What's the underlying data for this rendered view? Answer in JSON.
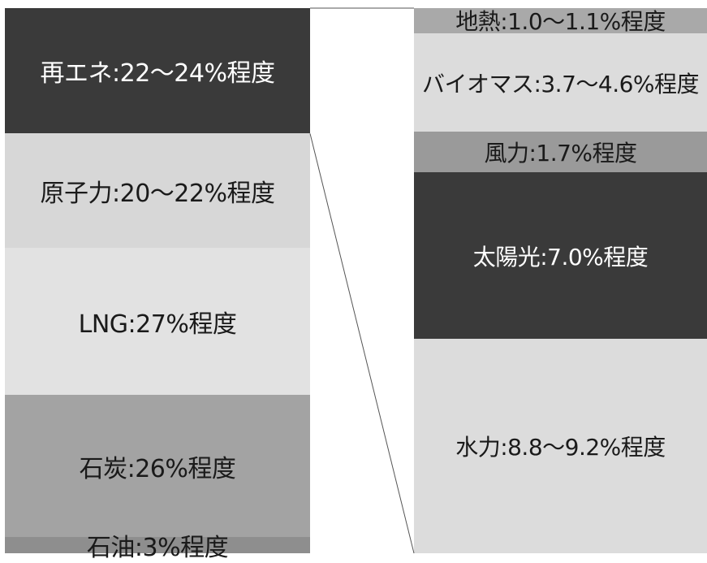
{
  "chart_data": {
    "type": "bar",
    "stacked": true,
    "title": "",
    "xlabel": "",
    "ylabel": "",
    "bars": [
      {
        "segments": [
          {
            "label": "再エネ:22〜24%程度",
            "value": 23,
            "color": "#3a3a3a",
            "text_color": "#ffffff"
          },
          {
            "label": "原子力:20〜22%程度",
            "value": 21,
            "color": "#d7d7d7",
            "text_color": "#1a1a1a"
          },
          {
            "label": "LNG:27%程度",
            "value": 27,
            "color": "#e2e2e2",
            "text_color": "#1a1a1a"
          },
          {
            "label": "石炭:26%程度",
            "value": 26,
            "color": "#a3a3a3",
            "text_color": "#1a1a1a"
          },
          {
            "label": "石油:3%程度",
            "value": 3,
            "color": "#8e8e8e",
            "text_color": "#1a1a1a"
          }
        ]
      },
      {
        "segments": [
          {
            "label": "地熱:1.0〜1.1%程度",
            "value": 1.05,
            "color": "#a9a9a9",
            "text_color": "#1a1a1a"
          },
          {
            "label": "バイオマス:3.7〜4.6%程度",
            "value": 4.15,
            "color": "#dcdcdc",
            "text_color": "#1a1a1a"
          },
          {
            "label": "風力:1.7%程度",
            "value": 1.7,
            "color": "#9a9a9a",
            "text_color": "#1a1a1a"
          },
          {
            "label": "太陽光:7.0%程度",
            "value": 7.0,
            "color": "#3a3a3a",
            "text_color": "#ffffff"
          },
          {
            "label": "水力:8.8〜9.2%程度",
            "value": 9.0,
            "color": "#dcdcdc",
            "text_color": "#1a1a1a"
          }
        ]
      }
    ],
    "connector_from_bar": 0,
    "connector_segment": 0,
    "connector_color": "#555555"
  }
}
